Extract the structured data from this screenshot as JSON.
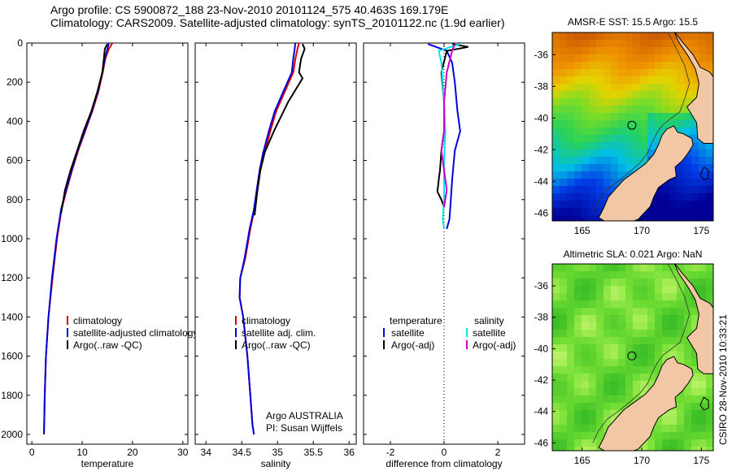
{
  "header": {
    "line1": "Argo profile: CS 5900872_188 23-Nov-2010 20101124_575 40.463S 169.179E",
    "line2": "Climatology: CARS2009. Satellite-adjusted climatology: synTS_20101122.nc (1.9d earlier)"
  },
  "credit": "CSIRO 28-Nov-2010 10:33:21",
  "colors": {
    "clim": "#dd0000",
    "sat": "#0000dd",
    "argo": "#000000",
    "sat_sal": "#00e5e5",
    "argo_sal": "#cc00cc",
    "land": "#f2c7a5"
  },
  "chart_data": [
    {
      "type": "line",
      "id": "temp",
      "xlabel": "temperature",
      "xlim": [
        -1,
        31
      ],
      "ylim": [
        0,
        2050
      ],
      "xticks": [
        "0",
        "10",
        "20",
        "30"
      ],
      "xtick_values": [
        0,
        10,
        20,
        30
      ],
      "yticks": [
        "0",
        "200",
        "400",
        "600",
        "800",
        "1000",
        "1200",
        "1400",
        "1600",
        "1800",
        "2000"
      ],
      "ytick_values": [
        0,
        200,
        400,
        600,
        800,
        1000,
        1200,
        1400,
        1600,
        1800,
        2000
      ],
      "legend": [
        "climatology",
        "satellite-adjusted climatology",
        "Argo(..raw -QC)"
      ],
      "series": [
        {
          "name": "climatology",
          "color": "clim",
          "x": [
            16,
            15.3,
            14.6,
            14.1,
            13.2,
            12.0,
            10.6,
            9.2,
            8.0,
            6.9,
            5.9,
            5.0,
            4.1,
            3.3,
            2.8,
            2.55,
            2.45,
            2.4
          ],
          "y": [
            0,
            30,
            80,
            150,
            250,
            350,
            450,
            550,
            650,
            750,
            850,
            1000,
            1200,
            1400,
            1600,
            1800,
            1950,
            2000
          ]
        },
        {
          "name": "satellite-adjusted climatology",
          "color": "sat",
          "x": [
            15.3,
            15.0,
            14.5,
            14.0,
            13.1,
            11.9,
            10.5,
            9.1,
            7.9,
            6.8,
            5.8,
            4.9,
            4.0,
            3.3,
            2.8,
            2.55,
            2.45,
            2.4
          ],
          "y": [
            0,
            30,
            80,
            150,
            250,
            350,
            450,
            550,
            650,
            750,
            850,
            1000,
            1200,
            1400,
            1600,
            1800,
            1950,
            2000
          ]
        },
        {
          "name": "Argo(..raw -QC)",
          "color": "argo",
          "x": [
            15.0,
            14.5,
            14.3,
            14.0,
            13.0,
            11.8,
            10.3,
            9.0,
            7.7,
            6.6,
            5.8
          ],
          "y": [
            5,
            30,
            80,
            150,
            250,
            350,
            450,
            550,
            650,
            750,
            870
          ]
        }
      ]
    },
    {
      "type": "line",
      "id": "sal",
      "xlabel": "salinity",
      "xlim": [
        33.85,
        36.1
      ],
      "ylim": [
        0,
        2050
      ],
      "xticks": [
        "34",
        "34.5",
        "35",
        "35.5",
        "36"
      ],
      "xtick_values": [
        34,
        34.5,
        35,
        35.5,
        36
      ],
      "legend": [
        "climatology",
        "satellite adj. clim.",
        "Argo(..raw -QC)"
      ],
      "annotation": [
        "Argo AUSTRALIA",
        "PI: Susan Wijffels"
      ],
      "series": [
        {
          "name": "climatology",
          "color": "clim",
          "x": [
            35.3,
            35.28,
            35.25,
            35.22,
            35.1,
            34.98,
            34.9,
            34.82,
            34.76,
            34.72,
            34.68,
            34.62,
            34.55,
            34.48,
            34.47,
            34.52,
            34.58,
            34.62,
            34.65,
            34.67
          ],
          "y": [
            0,
            30,
            80,
            150,
            250,
            350,
            450,
            560,
            650,
            750,
            850,
            950,
            1100,
            1200,
            1300,
            1400,
            1600,
            1800,
            1950,
            2000
          ]
        },
        {
          "name": "satellite adj. clim.",
          "color": "sat",
          "x": [
            35.25,
            35.24,
            35.22,
            35.2,
            35.08,
            34.96,
            34.88,
            34.8,
            34.75,
            34.71,
            34.67,
            34.61,
            34.54,
            34.48,
            34.47,
            34.52,
            34.58,
            34.62,
            34.65,
            34.67
          ],
          "y": [
            0,
            30,
            80,
            150,
            250,
            350,
            450,
            560,
            650,
            750,
            850,
            950,
            1100,
            1200,
            1300,
            1400,
            1600,
            1800,
            1950,
            2000
          ]
        },
        {
          "name": "Argo(..raw -QC)",
          "color": "argo",
          "x": [
            35.35,
            35.38,
            35.33,
            35.3,
            35.35,
            35.15,
            34.95,
            34.82,
            34.76,
            34.72,
            34.68
          ],
          "y": [
            5,
            30,
            80,
            150,
            180,
            300,
            450,
            560,
            650,
            750,
            880
          ]
        }
      ]
    },
    {
      "type": "line",
      "id": "diff",
      "xlabel": "difference from climatology",
      "xlim": [
        -3,
        3
      ],
      "ylim": [
        0,
        2050
      ],
      "xticks": [
        "-2",
        "0",
        "2"
      ],
      "xtick_values": [
        -2,
        0,
        2
      ],
      "legend_left": [
        "temperature",
        "satellite",
        "Argo(-adj)"
      ],
      "legend_right": [
        "salinity",
        "satellite",
        "Argo(-adj)"
      ],
      "series": [
        {
          "name": "temperature satellite",
          "color": "sat",
          "x": [
            -0.6,
            0.1,
            0.3,
            0.4,
            0.5,
            0.6,
            0.4,
            0.3,
            0.25,
            0.2,
            0.1
          ],
          "y": [
            5,
            40,
            100,
            200,
            350,
            450,
            550,
            700,
            800,
            900,
            950
          ]
        },
        {
          "name": "temperature Argo(-adj)",
          "color": "argo",
          "x": [
            0.3,
            0.9,
            0.1,
            -0.1,
            0.0,
            0.0,
            -0.1,
            -0.15,
            -0.2,
            -0.25,
            -0.1,
            0.0
          ],
          "y": [
            5,
            20,
            40,
            150,
            300,
            450,
            550,
            650,
            700,
            760,
            800,
            840
          ]
        },
        {
          "name": "salinity satellite",
          "color": "sat_sal",
          "x": [
            0.6,
            -0.2,
            -0.1,
            0.0,
            0.05,
            0.0,
            0.0,
            0.0,
            -0.05,
            0.0
          ],
          "y": [
            5,
            40,
            100,
            300,
            450,
            600,
            700,
            800,
            900,
            950
          ]
        },
        {
          "name": "salinity Argo(-adj)",
          "color": "argo_sal",
          "x": [
            0.4,
            0.3,
            0.1,
            0.0,
            0.0,
            -0.1,
            0.0,
            0.1,
            0.0
          ],
          "y": [
            5,
            40,
            150,
            300,
            450,
            550,
            650,
            750,
            840
          ]
        }
      ]
    }
  ],
  "maps": [
    {
      "id": "sst",
      "title": "AMSR-E SST: 15.5 Argo: 15.5",
      "lon": [
        162.5,
        176.0
      ],
      "lat": [
        -46.5,
        -34.6
      ],
      "xticks": [
        "165",
        "170",
        "175"
      ],
      "xtick_values": [
        165,
        170,
        175
      ],
      "yticks": [
        "-36",
        "-38",
        "-40",
        "-42",
        "-44",
        "-46"
      ],
      "ytick_values": [
        -36,
        -38,
        -40,
        -42,
        -44,
        -46
      ],
      "marker": {
        "lon": 169.18,
        "lat": -40.46
      }
    },
    {
      "id": "sla",
      "title": "Altimetric SLA: 0.021 Argo: NaN",
      "lon": [
        162.5,
        176.0
      ],
      "lat": [
        -46.5,
        -34.6
      ],
      "xticks": [
        "165",
        "170",
        "175"
      ],
      "xtick_values": [
        165,
        170,
        175
      ],
      "yticks": [
        "-36",
        "-38",
        "-40",
        "-42",
        "-44",
        "-46"
      ],
      "ytick_values": [
        -36,
        -38,
        -40,
        -42,
        -44,
        -46
      ],
      "marker": {
        "lon": 169.18,
        "lat": -40.46
      }
    }
  ]
}
